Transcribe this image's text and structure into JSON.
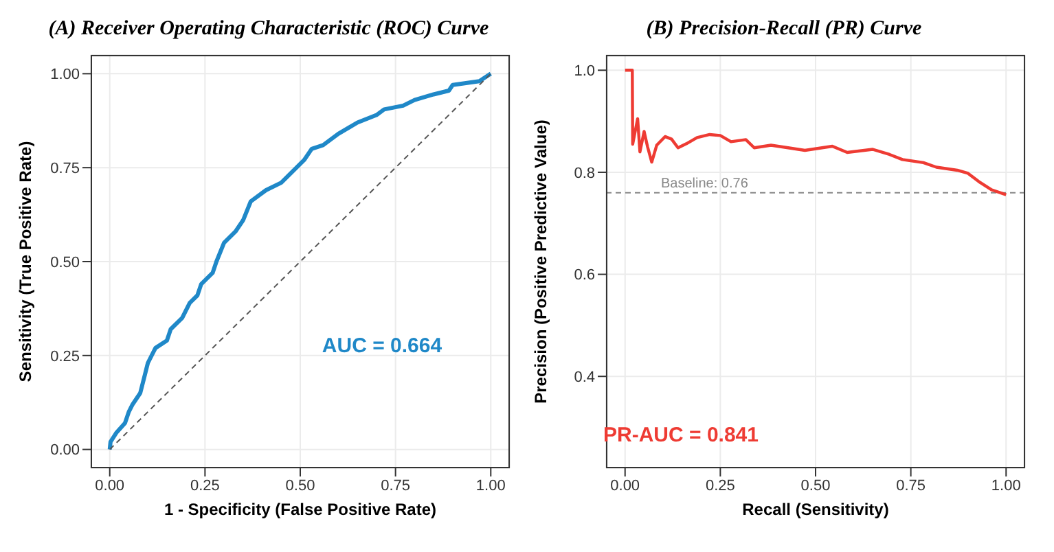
{
  "chart_data": [
    {
      "type": "line",
      "title": "(A) Receiver Operating Characteristic (ROC) Curve",
      "xlabel": "1 - Specificity (False Positive Rate)",
      "ylabel": "Sensitivity (True Positive Rate)",
      "xlim": [
        -0.05,
        1.05
      ],
      "ylim": [
        -0.05,
        1.05
      ],
      "xticks": [
        {
          "value": 0,
          "label": "0.00"
        },
        {
          "value": 0.25,
          "label": "0.25"
        },
        {
          "value": 0.5,
          "label": "0.50"
        },
        {
          "value": 0.75,
          "label": "0.75"
        },
        {
          "value": 1,
          "label": "1.00"
        }
      ],
      "yticks": [
        {
          "value": 0,
          "label": "0.00"
        },
        {
          "value": 0.25,
          "label": "0.25"
        },
        {
          "value": 0.5,
          "label": "0.50"
        },
        {
          "value": 0.75,
          "label": "0.75"
        },
        {
          "value": 1,
          "label": "1.00"
        }
      ],
      "grid": true,
      "marker": "none",
      "series": [
        {
          "color": "#1f88c8",
          "line_style": "solid",
          "x": [
            0,
            0.002,
            0.017,
            0.04,
            0.05,
            0.06,
            0.08,
            0.09,
            0.1,
            0.12,
            0.15,
            0.16,
            0.19,
            0.21,
            0.23,
            0.24,
            0.27,
            0.28,
            0.3,
            0.33,
            0.35,
            0.37,
            0.41,
            0.45,
            0.48,
            0.51,
            0.53,
            0.56,
            0.6,
            0.65,
            0.7,
            0.72,
            0.77,
            0.8,
            0.85,
            0.89,
            0.9,
            0.97,
            1
          ],
          "values": [
            0,
            0.02,
            0.044,
            0.07,
            0.1,
            0.12,
            0.15,
            0.19,
            0.23,
            0.27,
            0.29,
            0.32,
            0.35,
            0.39,
            0.41,
            0.44,
            0.47,
            0.5,
            0.55,
            0.58,
            0.61,
            0.66,
            0.69,
            0.71,
            0.74,
            0.77,
            0.8,
            0.81,
            0.84,
            0.87,
            0.89,
            0.905,
            0.915,
            0.93,
            0.945,
            0.955,
            0.97,
            0.98,
            1
          ]
        },
        {
          "color": "#555555",
          "line_style": "dashed",
          "x": [
            0,
            1
          ],
          "values": [
            0,
            1
          ]
        }
      ],
      "annotations": [
        "AUC = 0.664"
      ]
    },
    {
      "type": "line",
      "title": "(B) Precision-Recall (PR) Curve",
      "xlabel": "Recall (Sensitivity)",
      "ylabel": "Precision (Positive Predictive Value)",
      "xlim": [
        -0.05,
        1.05
      ],
      "ylim": [
        0.22,
        1.03
      ],
      "xticks": [
        {
          "value": 0,
          "label": "0.00"
        },
        {
          "value": 0.25,
          "label": "0.25"
        },
        {
          "value": 0.5,
          "label": "0.50"
        },
        {
          "value": 0.75,
          "label": "0.75"
        },
        {
          "value": 1,
          "label": "1.00"
        }
      ],
      "yticks": [
        0.4,
        0.6,
        0.8,
        {
          "value": 1,
          "label": "1.0"
        }
      ],
      "grid": true,
      "marker": "none",
      "series": [
        {
          "color": "#ee3b33",
          "line_style": "solid",
          "x": [
            0,
            0.019,
            0.02,
            0.033,
            0.039,
            0.05,
            0.059,
            0.07,
            0.083,
            0.105,
            0.122,
            0.139,
            0.161,
            0.189,
            0.222,
            0.25,
            0.278,
            0.317,
            0.339,
            0.383,
            0.428,
            0.472,
            0.544,
            0.583,
            0.65,
            0.694,
            0.728,
            0.783,
            0.817,
            0.872,
            0.9,
            0.928,
            0.961,
            1
          ],
          "values": [
            1,
            1,
            0.855,
            0.905,
            0.84,
            0.88,
            0.85,
            0.82,
            0.853,
            0.87,
            0.865,
            0.848,
            0.856,
            0.868,
            0.874,
            0.872,
            0.86,
            0.864,
            0.848,
            0.853,
            0.848,
            0.843,
            0.851,
            0.839,
            0.845,
            0.835,
            0.825,
            0.819,
            0.81,
            0.804,
            0.798,
            0.782,
            0.766,
            0.756
          ]
        }
      ],
      "ref_lines": [
        {
          "axis": "y",
          "value": 0.76,
          "label": "Baseline: 0.76",
          "color": "#888888",
          "line_style": "dashed"
        }
      ],
      "annotations": [
        "PR-AUC = 0.841"
      ]
    }
  ]
}
